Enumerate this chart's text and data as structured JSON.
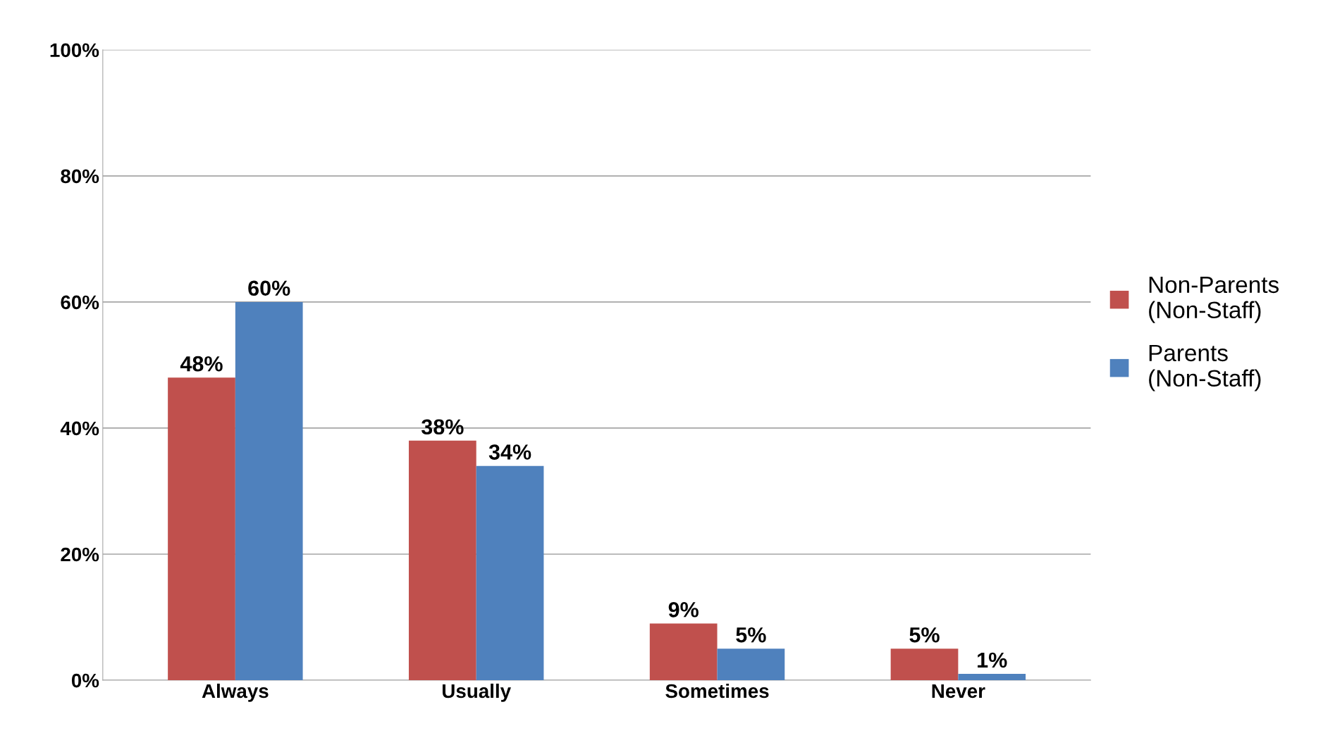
{
  "chart_data": {
    "type": "bar",
    "categories": [
      "Always",
      "Usually",
      "Sometimes",
      "Never"
    ],
    "series": [
      {
        "name": "Non-Parents\n(Non-Staff)",
        "color": "#c0504d",
        "values": [
          48,
          38,
          9,
          5
        ]
      },
      {
        "name": "Parents\n(Non-Staff)",
        "color": "#4f81bd",
        "values": [
          60,
          34,
          5,
          1
        ]
      }
    ],
    "ylim": [
      0,
      100
    ],
    "yticks": [
      {
        "value": 0,
        "label": "0%"
      },
      {
        "value": 20,
        "label": "20%"
      },
      {
        "value": 40,
        "label": "40%"
      },
      {
        "value": 60,
        "label": "60%"
      },
      {
        "value": 80,
        "label": "80%"
      },
      {
        "value": 100,
        "label": "100%"
      }
    ],
    "value_labels": [
      [
        "48%",
        "38%",
        "9%",
        "5%"
      ],
      [
        "60%",
        "34%",
        "5%",
        "1%"
      ]
    ],
    "grid": "y",
    "legend": "right"
  }
}
